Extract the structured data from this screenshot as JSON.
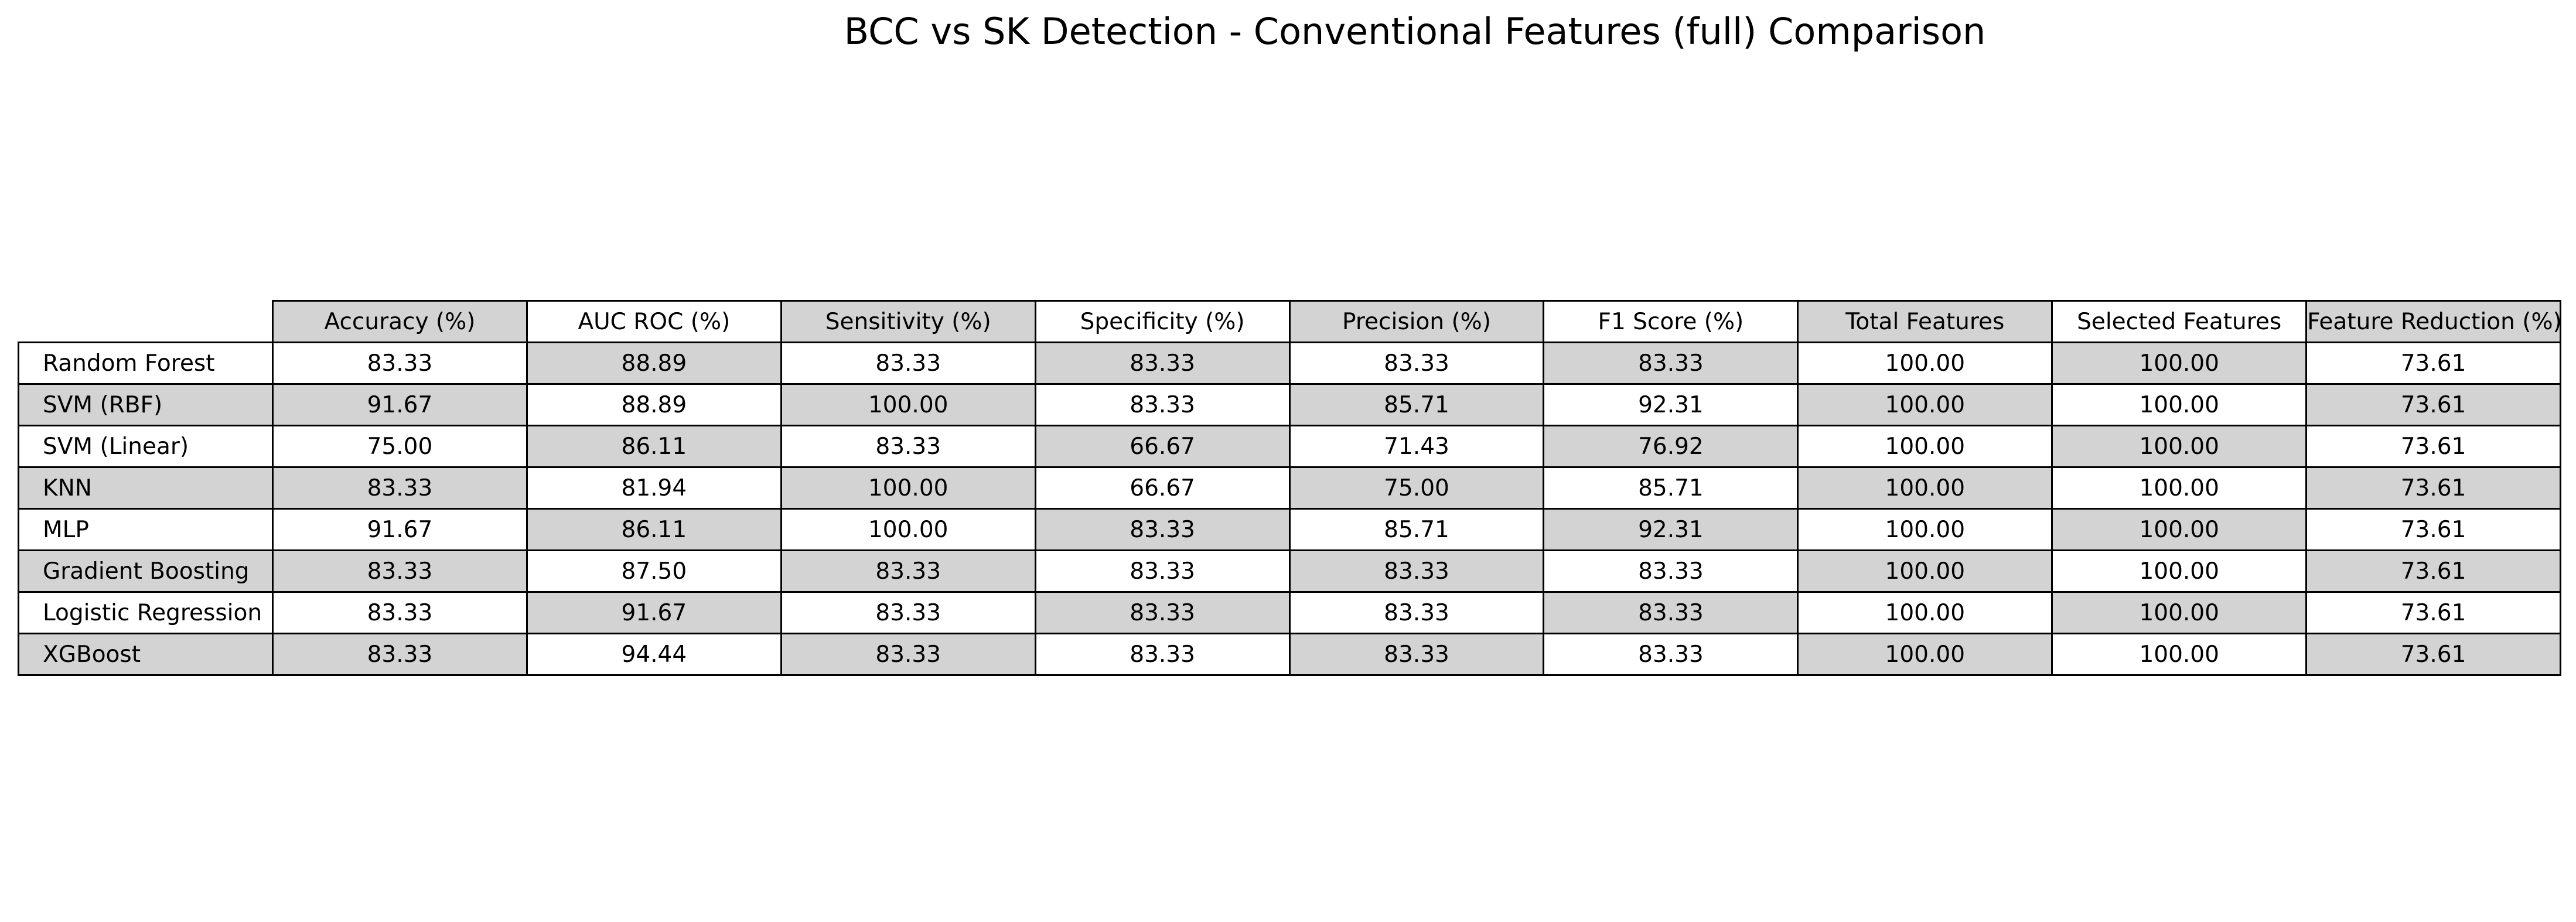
{
  "chart_data": {
    "type": "table",
    "title": "BCC vs SK Detection - Conventional Features (full) Comparison",
    "columns": [
      "Accuracy (%)",
      "AUC ROC (%)",
      "Sensitivity (%)",
      "Specificity (%)",
      "Precision (%)",
      "F1 Score (%)",
      "Total Features",
      "Selected Features",
      "Feature Reduction (%)"
    ],
    "rows": [
      {
        "name": "Random Forest",
        "values": [
          "83.33",
          "88.89",
          "83.33",
          "83.33",
          "83.33",
          "83.33",
          "100.00",
          "100.00",
          "73.61"
        ]
      },
      {
        "name": "SVM (RBF)",
        "values": [
          "91.67",
          "88.89",
          "100.00",
          "83.33",
          "85.71",
          "92.31",
          "100.00",
          "100.00",
          "73.61"
        ]
      },
      {
        "name": "SVM (Linear)",
        "values": [
          "75.00",
          "86.11",
          "83.33",
          "66.67",
          "71.43",
          "76.92",
          "100.00",
          "100.00",
          "73.61"
        ]
      },
      {
        "name": "KNN",
        "values": [
          "83.33",
          "81.94",
          "100.00",
          "66.67",
          "75.00",
          "85.71",
          "100.00",
          "100.00",
          "73.61"
        ]
      },
      {
        "name": "MLP",
        "values": [
          "91.67",
          "86.11",
          "100.00",
          "83.33",
          "85.71",
          "92.31",
          "100.00",
          "100.00",
          "73.61"
        ]
      },
      {
        "name": "Gradient Boosting",
        "values": [
          "83.33",
          "87.50",
          "83.33",
          "83.33",
          "83.33",
          "83.33",
          "100.00",
          "100.00",
          "73.61"
        ]
      },
      {
        "name": "Logistic Regression",
        "values": [
          "83.33",
          "91.67",
          "83.33",
          "83.33",
          "83.33",
          "83.33",
          "100.00",
          "100.00",
          "73.61"
        ]
      },
      {
        "name": "XGBoost",
        "values": [
          "83.33",
          "94.44",
          "83.33",
          "83.33",
          "83.33",
          "83.33",
          "100.00",
          "100.00",
          "73.61"
        ]
      }
    ],
    "colors": {
      "shade": "#d3d3d3",
      "plain": "#ffffff",
      "border": "#000000"
    }
  }
}
